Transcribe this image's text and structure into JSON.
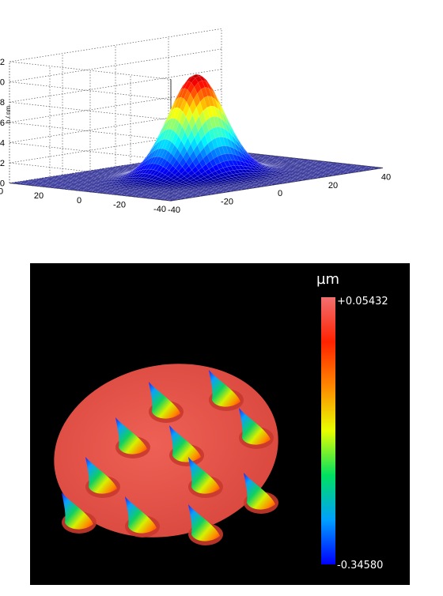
{
  "chart_data": [
    {
      "type": "surface3d",
      "title": "",
      "zlabel": "h / nm",
      "z_ticks": [
        "0",
        "2",
        "4",
        "6",
        "8",
        "10",
        "12"
      ],
      "zlim": [
        0,
        12
      ],
      "x_ticks": [
        "-40",
        "-20",
        "0",
        "20",
        "40"
      ],
      "y_ticks": [
        "40",
        "20",
        "0",
        "-20",
        "-40"
      ],
      "xlim": [
        -40,
        40
      ],
      "ylim": [
        -40,
        40
      ],
      "surface": {
        "shape": "gaussian",
        "peak_height": 10,
        "peak_x": 0,
        "peak_y": 0
      },
      "grid": true,
      "colormap": "jet"
    },
    {
      "type": "heatmap",
      "title": "",
      "unit": "µm",
      "colorbar_max": "+0.05432",
      "colorbar_min": "-0.34580",
      "background": "#000000",
      "surface_color": "#e2564a",
      "colormap": [
        "#0000ff",
        "#00a0ff",
        "#00e060",
        "#e8ff00",
        "#ff8800",
        "#ff2200",
        "#f07070"
      ],
      "cone_count": 11
    }
  ]
}
